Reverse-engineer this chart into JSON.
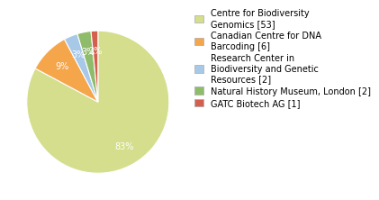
{
  "labels": [
    "Centre for Biodiversity\nGenomics [53]",
    "Canadian Centre for DNA\nBarcoding [6]",
    "Research Center in\nBiodiversity and Genetic\nResources [2]",
    "Natural History Museum, London [2]",
    "GATC Biotech AG [1]"
  ],
  "values": [
    53,
    6,
    2,
    2,
    1
  ],
  "colors": [
    "#d4de8c",
    "#f5a54a",
    "#a8c8e8",
    "#8fbc6a",
    "#d45f4e"
  ],
  "background_color": "#ffffff",
  "text_color": "#ffffff",
  "startangle": 90,
  "pct_fontsize": 7,
  "legend_fontsize": 7
}
